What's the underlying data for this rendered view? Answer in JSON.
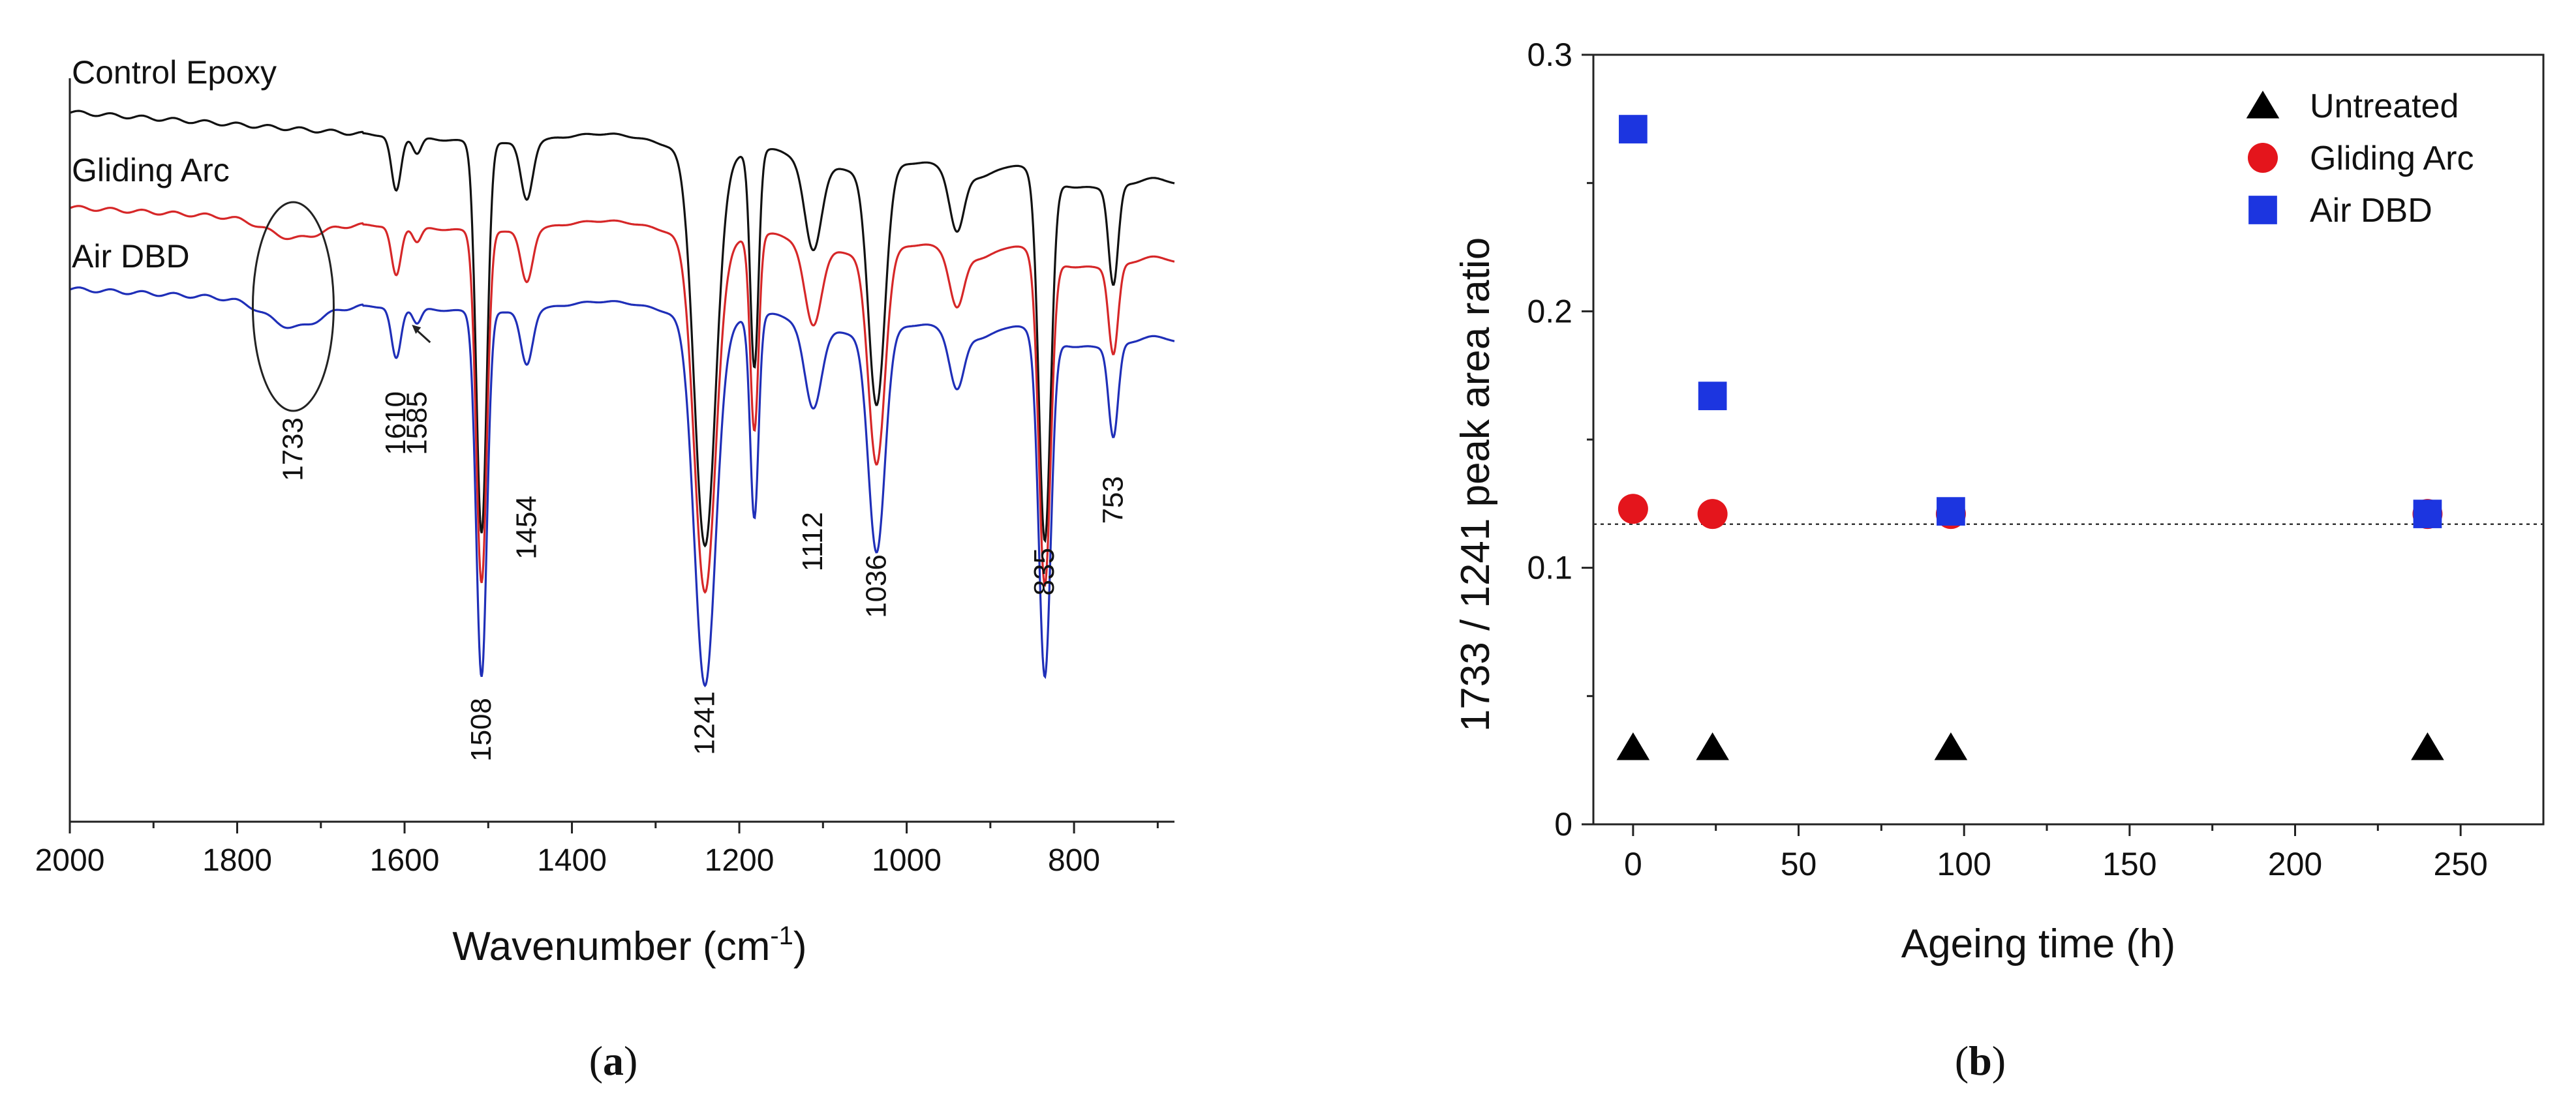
{
  "panel_labels": {
    "a": {
      "open": "(",
      "letter": "a",
      "close": ")"
    },
    "b": {
      "open": "(",
      "letter": "b",
      "close": ")"
    }
  },
  "chart_data": [
    {
      "type": "line",
      "panel": "a",
      "title": "",
      "xlabel": "Wavenumber (cm",
      "xlabel_superscript": "-1",
      "xlabel_suffix": ")",
      "ylabel": "",
      "xlim": [
        2000,
        680
      ],
      "x_reversed": true,
      "xticks": [
        2000,
        1800,
        1600,
        1400,
        1200,
        1000,
        800
      ],
      "xtick_labels": [
        "2000",
        "1800",
        "1600",
        "1400",
        "1200",
        "1000",
        "800"
      ],
      "yaxis_visible": false,
      "colors": {
        "Control Epoxy": "#111111",
        "Gliding Arc": "#d62728",
        "Air DBD": "#1f2fb8"
      },
      "series": [
        {
          "name": "Control Epoxy",
          "label": "Control Epoxy",
          "offset": 0.0,
          "carbonyl_depth": 0.0
        },
        {
          "name": "Gliding Arc",
          "label": "Gliding Arc",
          "offset": 0.0,
          "carbonyl_depth": 0.05
        },
        {
          "name": "Air DBD",
          "label": "Air DBD",
          "offset": 0.0,
          "carbonyl_depth": 0.07
        }
      ],
      "peaks": [
        {
          "x": 1733,
          "label": "1733",
          "depth": 0.07,
          "width": 45
        },
        {
          "x": 1610,
          "label": "1610",
          "depth": 0.14,
          "width": 8
        },
        {
          "x": 1585,
          "label": "1585",
          "depth": 0.04,
          "width": 7
        },
        {
          "x": 1508,
          "label": "1508",
          "depth": 1.0,
          "width": 9
        },
        {
          "x": 1454,
          "label": "1454",
          "depth": 0.15,
          "width": 10
        },
        {
          "x": 1241,
          "label": "1241",
          "depth": 1.0,
          "width": 18
        },
        {
          "x": 1182,
          "label": "",
          "depth": 0.55,
          "width": 7
        },
        {
          "x": 1112,
          "label": "1112",
          "depth": 0.22,
          "width": 14
        },
        {
          "x": 1036,
          "label": "1036",
          "depth": 0.6,
          "width": 14
        },
        {
          "x": 940,
          "label": "",
          "depth": 0.15,
          "width": 12
        },
        {
          "x": 835,
          "label": "835",
          "depth": 0.92,
          "width": 10
        },
        {
          "x": 753,
          "label": "753",
          "depth": 0.25,
          "width": 8
        }
      ],
      "annotations": [
        {
          "text": "1733",
          "x": 1733,
          "type": "ellipse"
        },
        {
          "text": "1585",
          "x": 1585,
          "type": "arrow"
        }
      ]
    },
    {
      "type": "scatter",
      "panel": "b",
      "title": "",
      "xlabel": "Ageing time (h)",
      "ylabel": "1733 / 1241 peak area ratio",
      "xlim": [
        -12,
        275
      ],
      "ylim": [
        0,
        0.3
      ],
      "xticks": [
        0,
        50,
        100,
        150,
        200,
        250
      ],
      "xtick_labels": [
        "0",
        "50",
        "100",
        "150",
        "200",
        "250"
      ],
      "yticks": [
        0,
        0.1,
        0.2,
        0.3
      ],
      "ytick_labels": [
        "0",
        "0.1",
        "0.2",
        "0.3"
      ],
      "reference_line": {
        "y": 0.117,
        "style": "dotted"
      },
      "legend_position": "top-right",
      "series": [
        {
          "name": "Untreated",
          "marker": "triangle",
          "color": "#000000",
          "x": [
            0,
            24,
            96,
            240
          ],
          "y": [
            0.03,
            0.03,
            0.03,
            0.03
          ]
        },
        {
          "name": "Gliding Arc",
          "marker": "circle",
          "color": "#e4151c",
          "x": [
            0,
            24,
            96,
            240
          ],
          "y": [
            0.123,
            0.121,
            0.121,
            0.121
          ]
        },
        {
          "name": "Air DBD",
          "marker": "square",
          "color": "#1c35e0",
          "x": [
            0,
            24,
            96,
            240
          ],
          "y": [
            0.271,
            0.167,
            0.122,
            0.121
          ]
        }
      ]
    }
  ]
}
